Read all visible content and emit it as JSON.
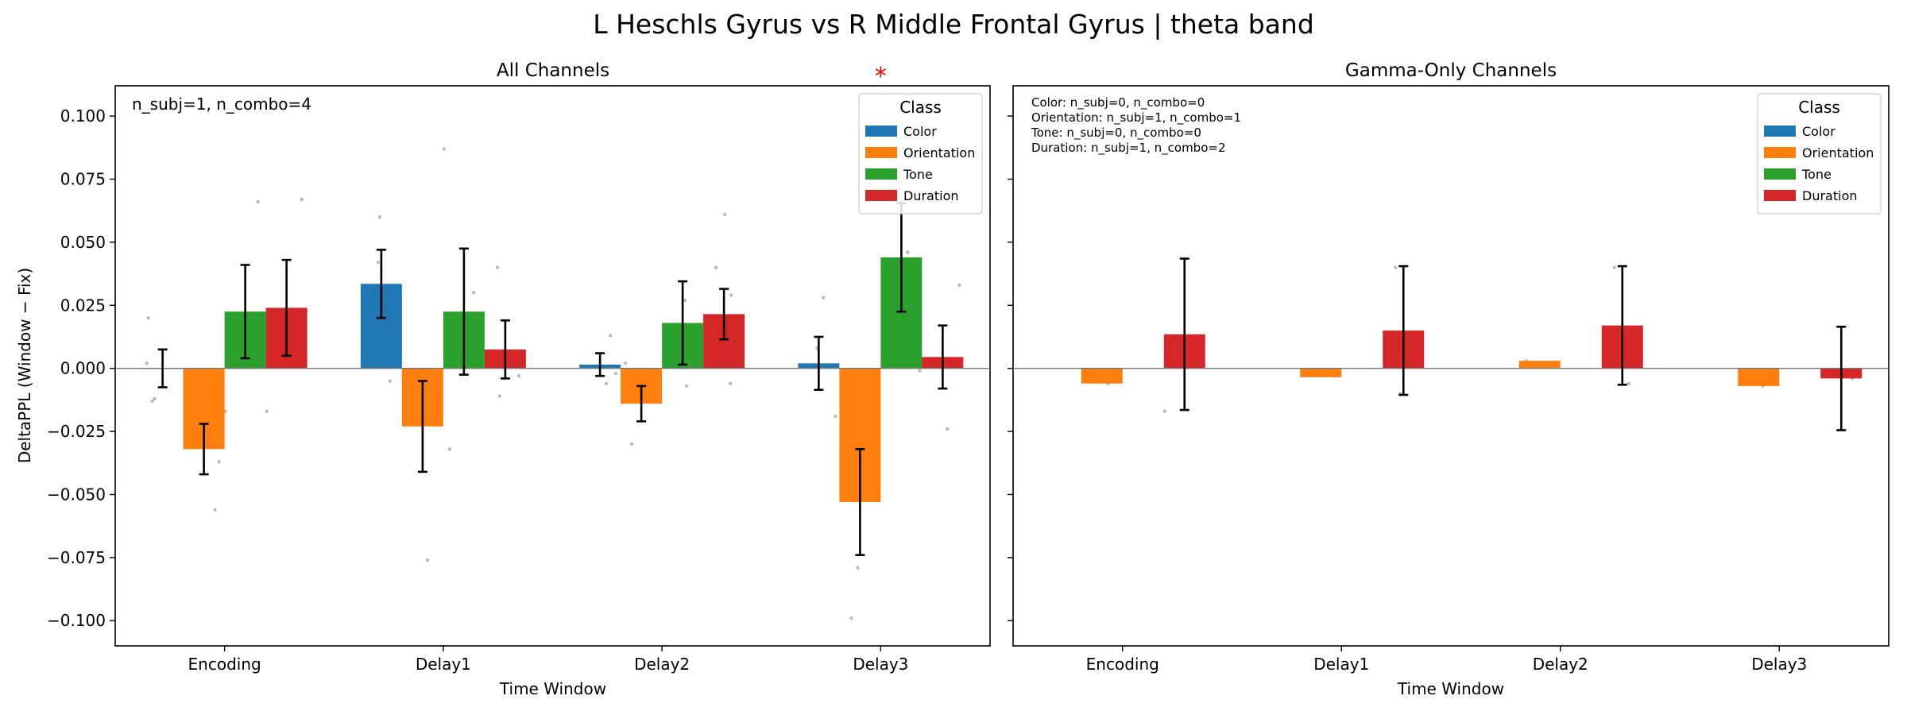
{
  "suptitle": "L Heschls Gyrus vs R Middle Frontal Gyrus  |  theta band",
  "colors": {
    "Color": "#1f77b4",
    "Orientation": "#ff7f0e",
    "Tone": "#2ca02c",
    "Duration": "#d62728",
    "star": "#ff0000",
    "points": "#bbbbbb"
  },
  "chart_data": [
    {
      "type": "bar",
      "title": "All Channels",
      "xlabel": "Time Window",
      "ylabel": "DeltaPPL (Window − Fix)",
      "ylim": [
        -0.11,
        0.112
      ],
      "yticks": [
        -0.1,
        -0.075,
        -0.05,
        -0.025,
        0.0,
        0.025,
        0.05,
        0.075,
        0.1
      ],
      "ytick_labels": [
        "−0.100",
        "−0.075",
        "−0.050",
        "−0.025",
        "0.000",
        "0.025",
        "0.050",
        "0.075",
        "0.100"
      ],
      "categories": [
        "Encoding",
        "Delay1",
        "Delay2",
        "Delay3"
      ],
      "annotation": "n_subj=1, n_combo=4",
      "significance": [
        {
          "category": "Delay3",
          "marker": "*"
        }
      ],
      "legend": {
        "title": "Class",
        "placement": "top-right",
        "entries": [
          "Color",
          "Orientation",
          "Tone",
          "Duration"
        ]
      },
      "series": [
        {
          "name": "Color",
          "values": [
            0.0,
            0.0335,
            0.0015,
            0.002
          ],
          "errors": [
            0.0075,
            0.0135,
            0.0045,
            0.0105
          ]
        },
        {
          "name": "Orientation",
          "values": [
            -0.032,
            -0.023,
            -0.014,
            -0.053
          ],
          "errors": [
            0.01,
            0.018,
            0.007,
            0.021
          ]
        },
        {
          "name": "Tone",
          "values": [
            0.0225,
            0.0225,
            0.018,
            0.044
          ],
          "errors": [
            0.0185,
            0.025,
            0.0165,
            0.0215
          ]
        },
        {
          "name": "Duration",
          "values": [
            0.024,
            0.0075,
            0.0215,
            0.0045
          ],
          "errors": [
            0.019,
            0.0115,
            0.01,
            0.0125
          ]
        }
      ],
      "points": [
        [
          [
            -0.013,
            -0.012,
            0.02,
            0.002
          ],
          [
            -0.056,
            -0.037
          ],
          [
            -0.017,
            0.066
          ],
          [
            -0.017,
            0.067,
            0.003
          ]
        ],
        [
          [
            -0.005,
            0.06,
            0.042
          ],
          [
            -0.076
          ],
          [
            0.03,
            0.087,
            -0.032
          ],
          [
            -0.011,
            0.04,
            -0.003
          ]
        ],
        [
          [
            -0.006,
            0.013,
            -0.002
          ],
          [
            -0.03,
            -0.009,
            0.002
          ],
          [
            -0.007,
            0.027
          ],
          [
            0.061,
            0.04,
            0.029,
            -0.006
          ]
        ],
        [
          [
            -0.019,
            0.008,
            0.028
          ],
          [
            -0.079,
            -0.099
          ],
          [
            0.046,
            -0.001
          ],
          [
            0.033,
            -0.024
          ]
        ]
      ]
    },
    {
      "type": "bar",
      "title": "Gamma-Only Channels",
      "xlabel": "Time Window",
      "ylim": [
        -0.11,
        0.112
      ],
      "categories": [
        "Encoding",
        "Delay1",
        "Delay2",
        "Delay3"
      ],
      "annotation_lines": [
        "Color: n_subj=0, n_combo=0",
        "Orientation: n_subj=1, n_combo=1",
        "Tone: n_subj=0, n_combo=0",
        "Duration: n_subj=1, n_combo=2"
      ],
      "legend": {
        "title": "Class",
        "placement": "top-right",
        "entries": [
          "Color",
          "Orientation",
          "Tone",
          "Duration"
        ]
      },
      "series": [
        {
          "name": "Color",
          "values": [
            null,
            null,
            null,
            null
          ],
          "errors": [
            null,
            null,
            null,
            null
          ]
        },
        {
          "name": "Orientation",
          "values": [
            -0.006,
            -0.0035,
            0.003,
            -0.007
          ],
          "errors": [
            null,
            null,
            null,
            null
          ]
        },
        {
          "name": "Tone",
          "values": [
            null,
            null,
            null,
            null
          ],
          "errors": [
            null,
            null,
            null,
            null
          ]
        },
        {
          "name": "Duration",
          "values": [
            0.0135,
            0.015,
            0.017,
            -0.004
          ],
          "errors": [
            0.03,
            0.0255,
            0.0235,
            0.0205
          ]
        }
      ],
      "points": [
        [
          [],
          [
            -0.006
          ],
          [],
          [
            0.003,
            -0.017
          ]
        ],
        [
          [],
          [
            -0.003
          ],
          [],
          [
            0.04,
            -0.01
          ]
        ],
        [
          [],
          [
            0.003
          ],
          [],
          [
            0.04,
            -0.006
          ]
        ],
        [
          [],
          [
            -0.007
          ],
          [],
          [
            -0.004
          ]
        ]
      ]
    }
  ]
}
